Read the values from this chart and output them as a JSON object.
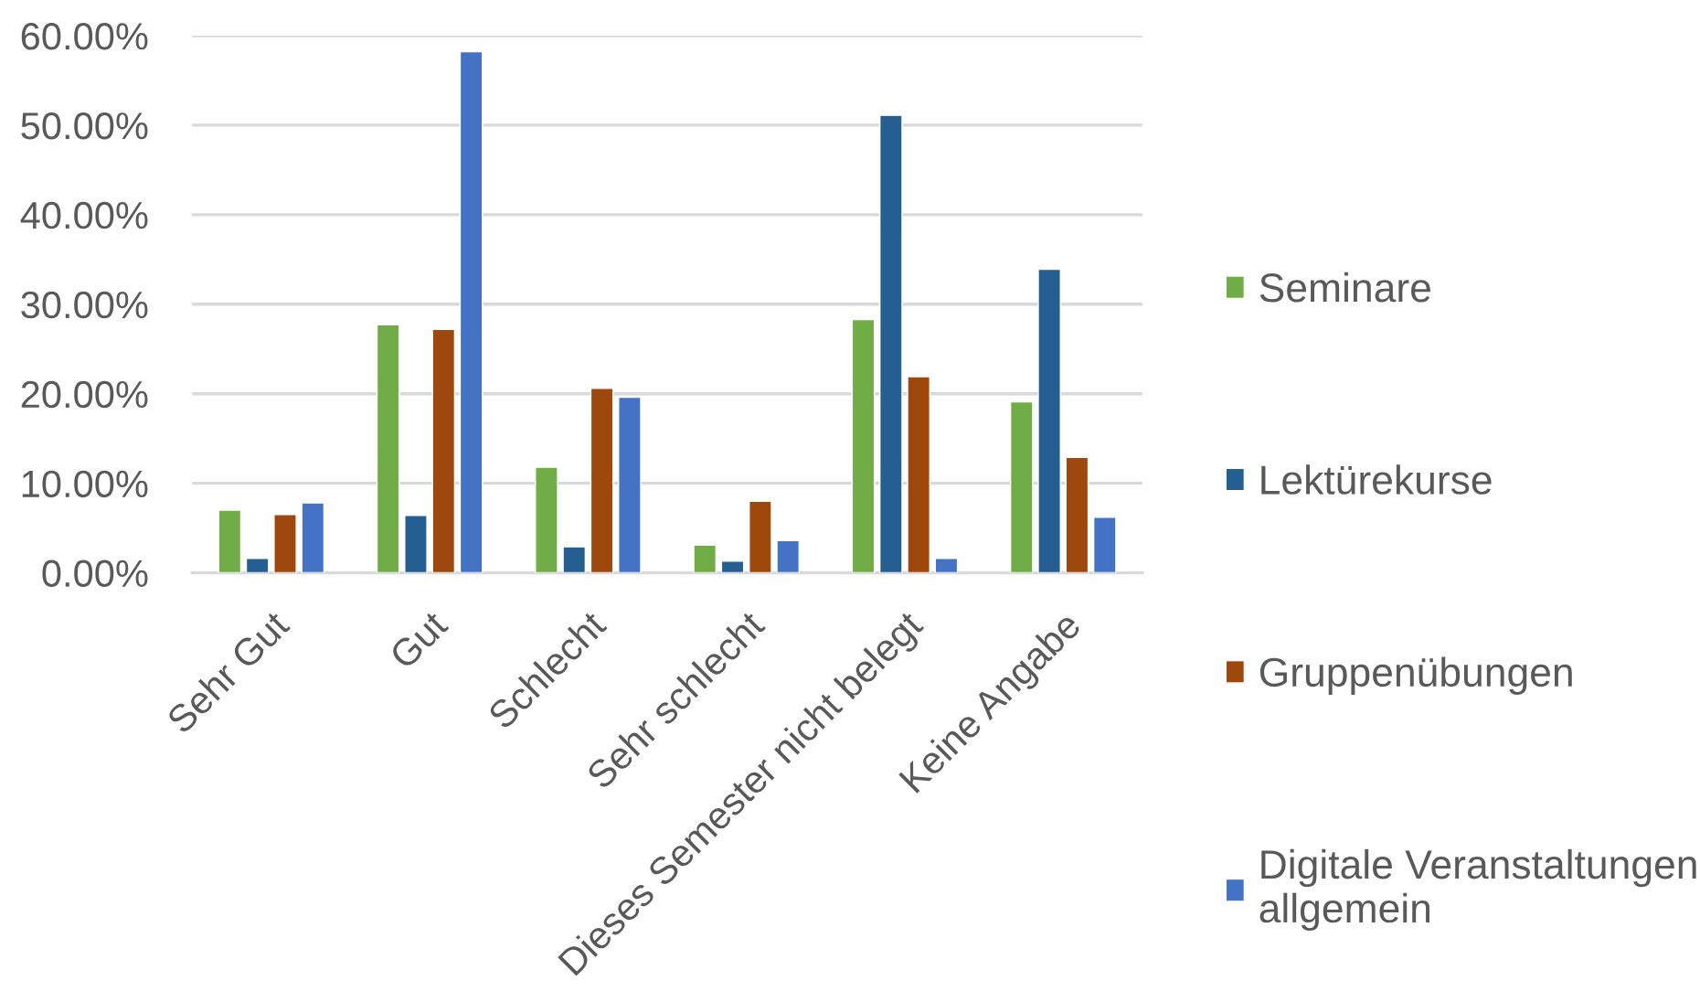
{
  "chart_data": {
    "type": "bar",
    "categories": [
      "Sehr Gut",
      "Gut",
      "Schlecht",
      "Sehr schlecht",
      "Dieses Semester nicht belegt",
      "Keine Angabe"
    ],
    "series": [
      {
        "name": "Seminare",
        "color": "#70ad47",
        "values": [
          7.0,
          27.7,
          11.8,
          3.1,
          28.3,
          19.1
        ]
      },
      {
        "name": "Lektürekurse",
        "color": "#255e91",
        "values": [
          1.6,
          6.4,
          2.9,
          1.3,
          51.1,
          33.9
        ]
      },
      {
        "name": "Gruppenübungen",
        "color": "#9e480e",
        "values": [
          6.5,
          27.2,
          20.6,
          8.0,
          21.9,
          12.9
        ]
      },
      {
        "name": "Digitale Veranstaltungen allgemein",
        "color": "#4472c4",
        "values": [
          7.8,
          58.2,
          19.6,
          3.6,
          1.6,
          6.2
        ]
      }
    ],
    "ylim": [
      0,
      60
    ],
    "yticks": [
      {
        "value": 0,
        "label": "0.00%"
      },
      {
        "value": 10,
        "label": "10.00%"
      },
      {
        "value": 20,
        "label": "20.00%"
      },
      {
        "value": 30,
        "label": "30.00%"
      },
      {
        "value": 40,
        "label": "40.00%"
      },
      {
        "value": 50,
        "label": "50.00%"
      },
      {
        "value": 60,
        "label": "60.00%"
      }
    ],
    "grid": "y",
    "legend": "right"
  }
}
